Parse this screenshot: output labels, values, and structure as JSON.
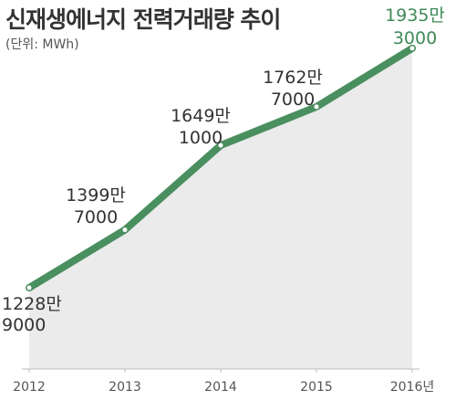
{
  "title": "신재생에너지 전력거래량 추이",
  "unit_note": "(단위: MWh)",
  "colors": {
    "line": "#4a8f5f",
    "area": "#ebebeb",
    "highlight_label": "#3f8a58",
    "text": "#333333"
  },
  "chart_data": {
    "type": "area",
    "title": "신재생에너지 전력거래량 추이",
    "x": [
      "2012",
      "2013",
      "2014",
      "2015",
      "2016"
    ],
    "x_tick_labels": [
      "2012",
      "2013",
      "2014",
      "2015",
      "2016년"
    ],
    "values": [
      12289000,
      13997000,
      16491000,
      17627000,
      19353000
    ],
    "data_labels": [
      [
        "1228만",
        "9000"
      ],
      [
        "1399만",
        "7000"
      ],
      [
        "1649만",
        "1000"
      ],
      [
        "1762만",
        "7000"
      ],
      [
        "1935만",
        "3000"
      ]
    ],
    "highlight_index": 4,
    "ylim": [
      10000000,
      19700000
    ],
    "grid": false,
    "legend": "none"
  }
}
